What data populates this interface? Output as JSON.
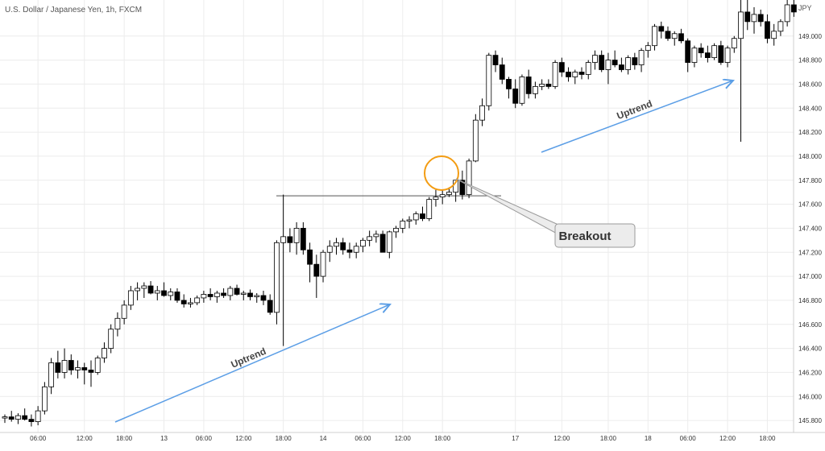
{
  "header": {
    "symbol": "U.S. Dollar / Japanese Yen, 1h, FXCM",
    "currency": "JPY"
  },
  "annotations": {
    "breakout_label": "Breakout",
    "uptrend_label_1": "Uptrend",
    "uptrend_label_2": "Uptrend"
  },
  "colors": {
    "up_body": "#ffffff",
    "down_body": "#000000",
    "wick": "#000000",
    "trend_arrow": "#5b9ee6",
    "highlight_circle": "#f39c12",
    "grid": "#ececec",
    "axis_text": "#333333",
    "resistance": "#555555"
  },
  "chart_data": {
    "type": "candlestick",
    "title": "U.S. Dollar / Japanese Yen, 1h, FXCM",
    "ylabel": "JPY",
    "ylim": [
      145.7,
      149.3
    ],
    "y_ticks": [
      "145.800",
      "146.000",
      "146.200",
      "146.400",
      "146.600",
      "146.800",
      "147.000",
      "147.200",
      "147.400",
      "147.600",
      "147.800",
      "148.000",
      "148.200",
      "148.400",
      "148.600",
      "148.800",
      "149.000"
    ],
    "x_ticks": [
      {
        "bar": 5,
        "label": "06:00"
      },
      {
        "bar": 12,
        "label": "12:00"
      },
      {
        "bar": 18,
        "label": "18:00"
      },
      {
        "bar": 24,
        "label": "13"
      },
      {
        "bar": 30,
        "label": "06:00"
      },
      {
        "bar": 36,
        "label": "12:00"
      },
      {
        "bar": 42,
        "label": "18:00"
      },
      {
        "bar": 48,
        "label": "14"
      },
      {
        "bar": 54,
        "label": "06:00"
      },
      {
        "bar": 60,
        "label": "12:00"
      },
      {
        "bar": 66,
        "label": "18:00"
      },
      {
        "bar": 77,
        "label": "17"
      },
      {
        "bar": 84,
        "label": "12:00"
      },
      {
        "bar": 91,
        "label": "18:00"
      },
      {
        "bar": 97,
        "label": "18"
      },
      {
        "bar": 103,
        "label": "06:00"
      },
      {
        "bar": 109,
        "label": "12:00"
      },
      {
        "bar": 115,
        "label": "18:00"
      }
    ],
    "resistance_level": 147.67,
    "series": [
      {
        "ohlc": [
          [
            145.82,
            145.85,
            145.78,
            145.83
          ],
          [
            145.83,
            145.88,
            145.79,
            145.81
          ],
          [
            145.81,
            145.86,
            145.77,
            145.84
          ],
          [
            145.84,
            145.9,
            145.8,
            145.81
          ],
          [
            145.81,
            145.85,
            145.75,
            145.79
          ],
          [
            145.79,
            145.92,
            145.76,
            145.88
          ],
          [
            145.88,
            146.12,
            145.85,
            146.08
          ],
          [
            146.08,
            146.32,
            146.02,
            146.28
          ],
          [
            146.28,
            146.38,
            146.15,
            146.2
          ],
          [
            146.2,
            146.4,
            146.15,
            146.3
          ],
          [
            146.3,
            146.35,
            146.18,
            146.22
          ],
          [
            146.22,
            146.3,
            146.15,
            146.24
          ],
          [
            146.24,
            146.28,
            146.1,
            146.22
          ],
          [
            146.22,
            146.3,
            146.08,
            146.2
          ],
          [
            146.2,
            146.34,
            146.18,
            146.32
          ],
          [
            146.32,
            146.45,
            146.28,
            146.4
          ],
          [
            146.4,
            146.6,
            146.36,
            146.56
          ],
          [
            146.56,
            146.7,
            146.5,
            146.65
          ],
          [
            146.65,
            146.8,
            146.6,
            146.76
          ],
          [
            146.76,
            146.92,
            146.72,
            146.88
          ],
          [
            146.88,
            146.95,
            146.8,
            146.9
          ],
          [
            146.9,
            146.95,
            146.82,
            146.92
          ],
          [
            146.92,
            146.96,
            146.85,
            146.86
          ],
          [
            146.86,
            146.92,
            146.8,
            146.88
          ],
          [
            146.88,
            146.95,
            146.83,
            146.84
          ],
          [
            146.84,
            146.9,
            146.8,
            146.87
          ],
          [
            146.87,
            146.9,
            146.78,
            146.8
          ],
          [
            146.8,
            146.85,
            146.74,
            146.77
          ],
          [
            146.77,
            146.82,
            146.74,
            146.78
          ],
          [
            146.78,
            146.84,
            146.76,
            146.82
          ],
          [
            146.82,
            146.88,
            146.78,
            146.85
          ],
          [
            146.85,
            146.9,
            146.8,
            146.83
          ],
          [
            146.83,
            146.88,
            146.78,
            146.86
          ],
          [
            146.86,
            146.9,
            146.82,
            146.84
          ],
          [
            146.84,
            146.92,
            146.8,
            146.9
          ],
          [
            146.9,
            146.93,
            146.84,
            146.85
          ],
          [
            146.85,
            146.88,
            146.8,
            146.86
          ],
          [
            146.86,
            146.89,
            146.8,
            146.83
          ],
          [
            146.83,
            146.86,
            146.78,
            146.84
          ],
          [
            146.84,
            146.88,
            146.76,
            146.8
          ],
          [
            146.8,
            146.85,
            146.68,
            146.7
          ],
          [
            146.7,
            147.3,
            146.6,
            147.28
          ],
          [
            147.28,
            147.68,
            146.42,
            147.33
          ],
          [
            147.33,
            147.4,
            147.2,
            147.28
          ],
          [
            147.28,
            147.45,
            147.18,
            147.4
          ],
          [
            147.4,
            147.45,
            147.18,
            147.22
          ],
          [
            147.22,
            147.28,
            146.95,
            147.1
          ],
          [
            147.1,
            147.18,
            146.82,
            147.0
          ],
          [
            147.0,
            147.22,
            146.95,
            147.2
          ],
          [
            147.2,
            147.3,
            147.12,
            147.25
          ],
          [
            147.25,
            147.32,
            147.18,
            147.28
          ],
          [
            147.28,
            147.32,
            147.18,
            147.22
          ],
          [
            147.22,
            147.28,
            147.15,
            147.2
          ],
          [
            147.2,
            147.28,
            147.15,
            147.25
          ],
          [
            147.25,
            147.32,
            147.2,
            147.3
          ],
          [
            147.3,
            147.38,
            147.25,
            147.33
          ],
          [
            147.33,
            147.38,
            147.28,
            147.35
          ],
          [
            147.35,
            147.38,
            147.2,
            147.2
          ],
          [
            147.2,
            147.38,
            147.15,
            147.37
          ],
          [
            147.37,
            147.42,
            147.32,
            147.4
          ],
          [
            147.4,
            147.48,
            147.36,
            147.46
          ],
          [
            147.46,
            147.5,
            147.4,
            147.47
          ],
          [
            147.47,
            147.54,
            147.43,
            147.52
          ],
          [
            147.52,
            147.58,
            147.46,
            147.48
          ],
          [
            147.48,
            147.66,
            147.46,
            147.64
          ],
          [
            147.64,
            147.72,
            147.58,
            147.66
          ],
          [
            147.66,
            147.72,
            147.6,
            147.68
          ],
          [
            147.68,
            147.74,
            147.66,
            147.7
          ],
          [
            147.7,
            147.8,
            147.62,
            147.8
          ],
          [
            147.8,
            147.88,
            147.64,
            147.68
          ],
          [
            147.68,
            147.98,
            147.65,
            147.96
          ],
          [
            147.96,
            148.35,
            147.95,
            148.3
          ],
          [
            148.3,
            148.48,
            148.25,
            148.42
          ],
          [
            148.42,
            148.86,
            148.38,
            148.84
          ],
          [
            148.84,
            148.88,
            148.7,
            148.76
          ],
          [
            148.76,
            148.82,
            148.6,
            148.64
          ],
          [
            148.64,
            148.66,
            148.48,
            148.56
          ],
          [
            148.56,
            148.64,
            148.4,
            148.44
          ],
          [
            148.44,
            148.68,
            148.42,
            148.66
          ],
          [
            148.66,
            148.72,
            148.48,
            148.52
          ],
          [
            148.52,
            148.62,
            148.48,
            148.58
          ],
          [
            148.58,
            148.64,
            148.55,
            148.6
          ],
          [
            148.6,
            148.64,
            148.56,
            148.58
          ],
          [
            148.58,
            148.8,
            148.56,
            148.78
          ],
          [
            148.78,
            148.82,
            148.66,
            148.7
          ],
          [
            148.7,
            148.74,
            148.62,
            148.66
          ],
          [
            148.66,
            148.72,
            148.6,
            148.7
          ],
          [
            148.7,
            148.74,
            148.64,
            148.68
          ],
          [
            148.68,
            148.8,
            148.64,
            148.78
          ],
          [
            148.78,
            148.88,
            148.72,
            148.84
          ],
          [
            148.84,
            148.88,
            148.7,
            148.72
          ],
          [
            148.72,
            148.86,
            148.6,
            148.8
          ],
          [
            148.8,
            148.88,
            148.74,
            148.76
          ],
          [
            148.76,
            148.82,
            148.7,
            148.72
          ],
          [
            148.72,
            148.84,
            148.68,
            148.82
          ],
          [
            148.82,
            148.86,
            148.72,
            148.76
          ],
          [
            148.76,
            148.9,
            148.7,
            148.88
          ],
          [
            148.88,
            148.95,
            148.82,
            148.92
          ],
          [
            148.92,
            149.1,
            148.88,
            149.08
          ],
          [
            149.08,
            149.12,
            148.98,
            149.04
          ],
          [
            149.04,
            149.08,
            148.96,
            148.98
          ],
          [
            148.98,
            149.04,
            148.92,
            149.02
          ],
          [
            149.02,
            149.06,
            148.94,
            148.96
          ],
          [
            148.96,
            148.98,
            148.7,
            148.78
          ],
          [
            148.78,
            148.92,
            148.74,
            148.9
          ],
          [
            148.9,
            148.94,
            148.82,
            148.86
          ],
          [
            148.86,
            148.92,
            148.78,
            148.82
          ],
          [
            148.82,
            148.94,
            148.8,
            148.92
          ],
          [
            148.92,
            148.96,
            148.76,
            148.78
          ],
          [
            148.78,
            148.92,
            148.74,
            148.9
          ],
          [
            148.9,
            149.0,
            148.86,
            148.98
          ],
          [
            148.98,
            149.3,
            148.12,
            149.2
          ],
          [
            149.2,
            149.32,
            149.05,
            149.12
          ],
          [
            149.12,
            149.24,
            149.02,
            149.18
          ],
          [
            149.18,
            149.22,
            149.08,
            149.12
          ],
          [
            149.12,
            149.18,
            148.94,
            148.98
          ],
          [
            148.98,
            149.1,
            148.92,
            149.04
          ],
          [
            149.04,
            149.14,
            149.0,
            149.12
          ],
          [
            149.12,
            149.3,
            149.08,
            149.26
          ],
          [
            149.26,
            149.3,
            149.16,
            149.2
          ]
        ]
      }
    ]
  }
}
